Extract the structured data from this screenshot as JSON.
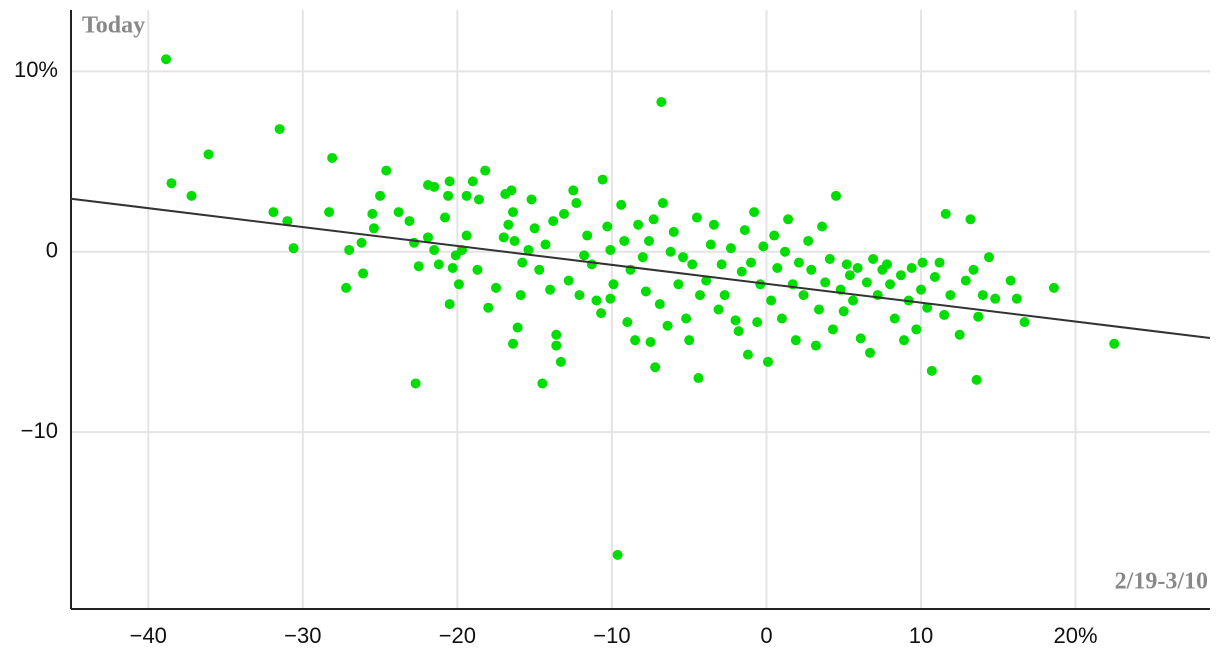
{
  "chart_data": {
    "type": "scatter",
    "annotations": [
      "Today",
      "2/19-3/10"
    ],
    "color": "#00dd00",
    "xlim": [
      -45,
      28.7
    ],
    "ylim": [
      -19.8,
      13.4
    ],
    "xticks": [
      {
        "value": -40,
        "label": "−40"
      },
      {
        "value": -30,
        "label": "−30"
      },
      {
        "value": -20,
        "label": "−20"
      },
      {
        "value": -10,
        "label": "−10"
      },
      0,
      10,
      {
        "value": 20,
        "label": "20%"
      }
    ],
    "yticks": [
      {
        "value": 10,
        "label": "10%"
      },
      0,
      {
        "value": -10,
        "label": "−10"
      }
    ],
    "grid": true,
    "trendline": {
      "color": "#333333",
      "x": [
        -45,
        28.7
      ],
      "y": [
        2.94,
        -4.78
      ]
    },
    "x": [
      -38.85,
      -38.5,
      -37.2,
      -36.1,
      -31.5,
      -31.9,
      -31.0,
      -30.6,
      -28.1,
      -28.3,
      -27.2,
      -27.0,
      -26.2,
      -26.1,
      -25.5,
      -25.4,
      -25.0,
      -24.6,
      -23.8,
      -23.1,
      -22.8,
      -22.7,
      -22.5,
      -21.9,
      -21.5,
      -21.9,
      -21.5,
      -21.2,
      -20.8,
      -20.6,
      -20.5,
      -20.5,
      -20.3,
      -20.1,
      -19.9,
      -19.7,
      -19.4,
      -19.4,
      -19.0,
      -18.6,
      -18.7,
      -18.2,
      -18.0,
      -17.5,
      -17.0,
      -16.9,
      -16.7,
      -16.5,
      -16.4,
      -16.3,
      -16.1,
      -16.4,
      -15.9,
      -15.8,
      -15.4,
      -15.2,
      -15.0,
      -14.7,
      -14.5,
      -14.3,
      -14.0,
      -13.8,
      -13.6,
      -13.6,
      -13.3,
      -13.1,
      -12.8,
      -12.5,
      -12.3,
      -12.1,
      -11.8,
      -11.6,
      -11.3,
      -11.0,
      -10.7,
      -10.6,
      -10.3,
      -10.1,
      -10.1,
      -9.9,
      -9.63,
      -9.4,
      -9.2,
      -9.0,
      -8.8,
      -8.5,
      -8.3,
      -8.0,
      -7.8,
      -7.6,
      -7.5,
      -7.3,
      -7.2,
      -6.9,
      -6.8,
      -6.7,
      -6.4,
      -6.2,
      -6.0,
      -5.7,
      -5.4,
      -5.2,
      -5.0,
      -4.8,
      -4.5,
      -4.4,
      -4.3,
      -3.9,
      -3.6,
      -3.4,
      -3.1,
      -2.9,
      -2.7,
      -2.3,
      -2.0,
      -1.8,
      -1.6,
      -1.4,
      -1.2,
      -1.0,
      -0.8,
      -0.6,
      -0.4,
      -0.2,
      0.1,
      0.3,
      0.5,
      0.7,
      1.0,
      1.2,
      1.4,
      1.7,
      1.9,
      2.1,
      2.4,
      2.7,
      2.9,
      3.2,
      3.4,
      3.6,
      3.8,
      4.1,
      4.3,
      4.5,
      4.8,
      5.0,
      5.2,
      5.4,
      5.6,
      5.9,
      6.1,
      6.5,
      6.7,
      6.9,
      7.2,
      7.5,
      7.8,
      8.0,
      8.3,
      8.7,
      8.9,
      9.2,
      9.4,
      9.7,
      10.0,
      10.1,
      10.4,
      10.7,
      10.9,
      11.2,
      11.5,
      11.6,
      11.9,
      12.5,
      12.9,
      13.2,
      13.4,
      13.6,
      13.7,
      14.0,
      14.4,
      14.8,
      15.8,
      16.2,
      16.7,
      18.6,
      22.5
    ],
    "values": [
      10.67,
      3.8,
      3.1,
      5.4,
      6.8,
      2.2,
      1.7,
      0.2,
      5.2,
      2.2,
      -2.0,
      0.1,
      0.5,
      -1.2,
      2.1,
      1.3,
      3.1,
      4.5,
      2.2,
      1.7,
      0.5,
      -7.3,
      -0.8,
      3.7,
      3.6,
      0.8,
      0.1,
      -0.7,
      1.9,
      3.1,
      3.9,
      -2.9,
      -0.9,
      -0.2,
      -1.8,
      0.1,
      3.1,
      0.9,
      3.9,
      2.9,
      -1.0,
      4.5,
      -3.1,
      -2.0,
      0.8,
      3.2,
      1.5,
      3.4,
      2.2,
      0.6,
      -4.2,
      -5.1,
      -2.4,
      -0.6,
      0.1,
      2.9,
      1.3,
      -1.0,
      -7.3,
      0.4,
      -2.1,
      1.7,
      -4.6,
      -5.2,
      -6.1,
      2.1,
      -1.6,
      3.4,
      2.7,
      -2.4,
      -0.2,
      0.9,
      -0.7,
      -2.7,
      -3.4,
      4.0,
      1.4,
      0.1,
      -2.6,
      -1.8,
      -16.8,
      2.6,
      0.6,
      -3.9,
      -1.0,
      -4.9,
      1.5,
      -0.3,
      -2.2,
      0.6,
      -5.0,
      1.8,
      -6.4,
      -2.9,
      8.3,
      2.7,
      -4.1,
      0.0,
      1.1,
      -1.8,
      -0.3,
      -3.7,
      -4.9,
      -0.7,
      1.9,
      -7.0,
      -2.4,
      -1.6,
      0.4,
      1.5,
      -3.2,
      -0.7,
      -2.4,
      0.2,
      -3.8,
      -4.4,
      -1.1,
      1.2,
      -5.7,
      -0.6,
      2.2,
      -3.9,
      -1.8,
      0.3,
      -6.1,
      -2.7,
      0.9,
      -0.9,
      -3.7,
      0.0,
      1.8,
      -1.8,
      -4.9,
      -0.6,
      -2.4,
      0.6,
      -1.0,
      -5.2,
      -3.2,
      1.4,
      -1.7,
      -0.4,
      -4.3,
      3.1,
      -2.1,
      -3.3,
      -0.7,
      -1.3,
      -2.7,
      -0.9,
      -4.8,
      -1.7,
      -5.6,
      -0.4,
      -2.4,
      -1.0,
      -0.7,
      -1.8,
      -3.7,
      -1.3,
      -4.9,
      -2.7,
      -0.9,
      -4.3,
      -2.1,
      -0.6,
      -3.1,
      -6.6,
      -1.4,
      -0.6,
      -3.5,
      2.1,
      -2.4,
      -4.6,
      -1.6,
      1.8,
      -1.0,
      -7.1,
      -3.6,
      -2.4,
      -0.3,
      -2.6,
      -1.6,
      -2.6,
      -3.9,
      -2.0,
      -5.1
    ]
  }
}
